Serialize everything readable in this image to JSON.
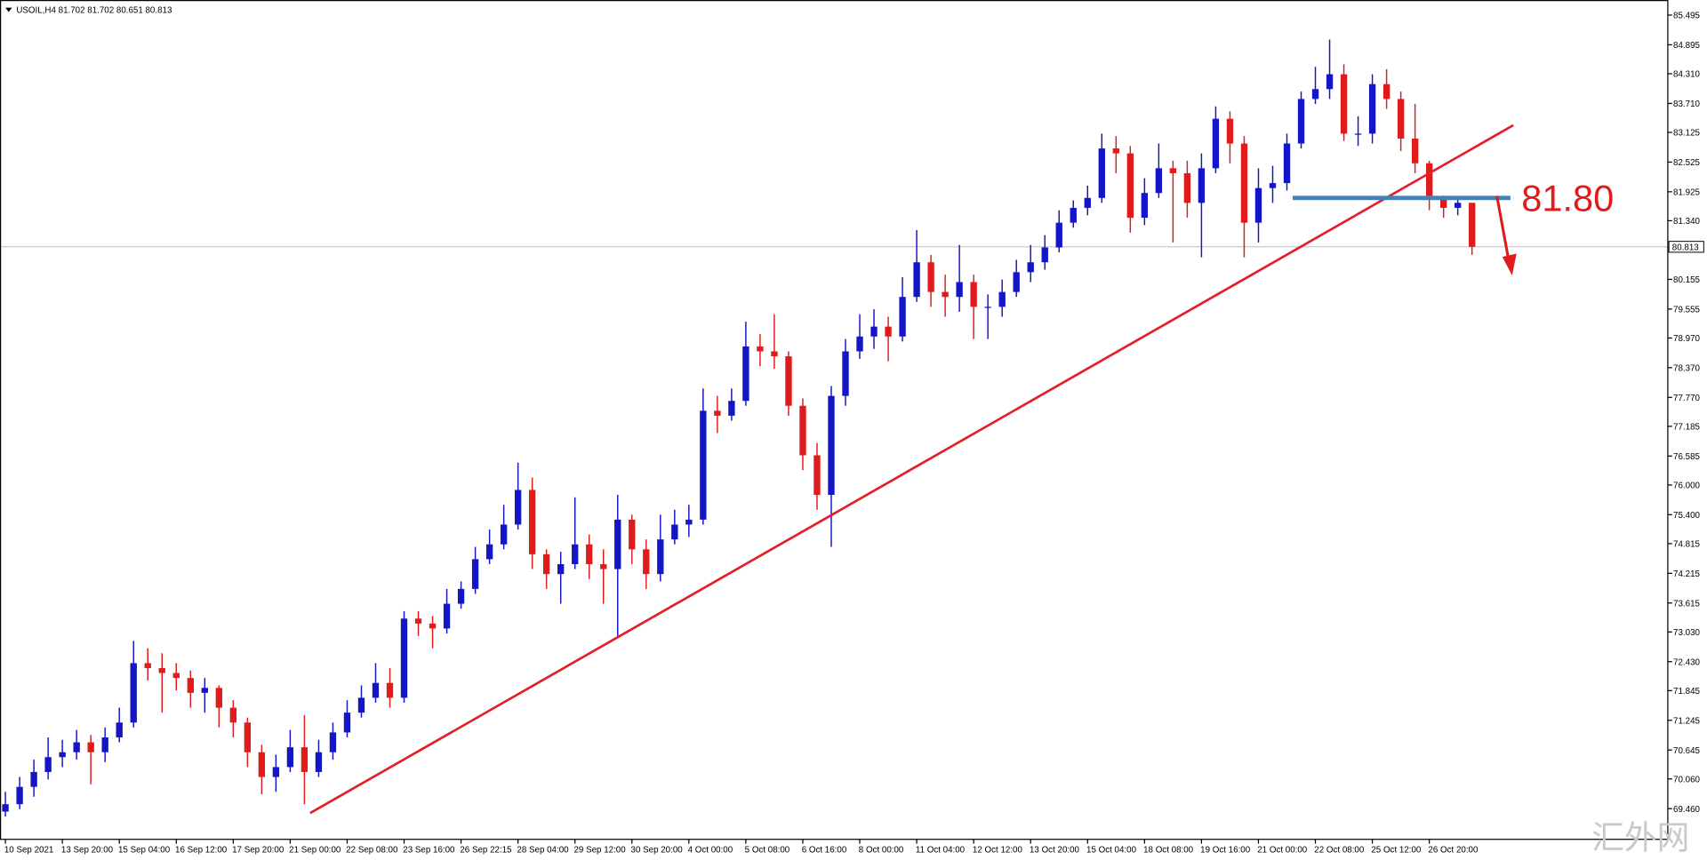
{
  "chart_data": {
    "type": "candlestick",
    "title": "USOIL,H4  81.702 81.702 80.651 80.813",
    "watermark": "汇外网",
    "up_color": "#1515c8",
    "down_color": "#e01b1b",
    "xlim": [
      -0.38,
      116.75
    ],
    "ylim": [
      68.84,
      85.8
    ],
    "xticks": [
      {
        "value": 0,
        "label": "10 Sep 2021"
      },
      {
        "value": 4,
        "label": "13 Sep 20:00"
      },
      {
        "value": 8,
        "label": "15 Sep 04:00"
      },
      {
        "value": 12,
        "label": "16 Sep 12:00"
      },
      {
        "value": 16,
        "label": "17 Sep 20:00"
      },
      {
        "value": 20,
        "label": "21 Sep 00:00"
      },
      {
        "value": 24,
        "label": "22 Sep 08:00"
      },
      {
        "value": 28,
        "label": "23 Sep 16:00"
      },
      {
        "value": 32,
        "label": "26 Sep 22:15"
      },
      {
        "value": 36,
        "label": "28 Sep 04:00"
      },
      {
        "value": 40,
        "label": "29 Sep 12:00"
      },
      {
        "value": 44,
        "label": "30 Sep 20:00"
      },
      {
        "value": 48,
        "label": "4 Oct 00:00"
      },
      {
        "value": 52,
        "label": "5 Oct 08:00"
      },
      {
        "value": 56,
        "label": "6 Oct 16:00"
      },
      {
        "value": 60,
        "label": "8 Oct 00:00"
      },
      {
        "value": 64,
        "label": "11 Oct 04:00"
      },
      {
        "value": 68,
        "label": "12 Oct 12:00"
      },
      {
        "value": 72,
        "label": "13 Oct 20:00"
      },
      {
        "value": 76,
        "label": "15 Oct 04:00"
      },
      {
        "value": 80,
        "label": "18 Oct 08:00"
      },
      {
        "value": 84,
        "label": "19 Oct 16:00"
      },
      {
        "value": 88,
        "label": "21 Oct 00:00"
      },
      {
        "value": 92,
        "label": "22 Oct 08:00"
      },
      {
        "value": 96,
        "label": "25 Oct 12:00"
      },
      {
        "value": 100,
        "label": "26 Oct 20:00"
      }
    ],
    "yticks": [
      85.495,
      84.895,
      {
        "value": 84.31,
        "label": "84.310"
      },
      {
        "value": 83.71,
        "label": "83.710"
      },
      83.125,
      82.525,
      81.925,
      {
        "value": 81.34,
        "label": "81.340"
      },
      80.155,
      79.555,
      {
        "value": 78.97,
        "label": "78.970"
      },
      {
        "value": 78.37,
        "label": "78.370"
      },
      {
        "value": 77.77,
        "label": "77.770"
      },
      77.185,
      76.585,
      {
        "value": 76,
        "label": "76.000"
      },
      {
        "value": 75.4,
        "label": "75.400"
      },
      74.815,
      74.215,
      73.615,
      {
        "value": 73.03,
        "label": "73.030"
      },
      {
        "value": 72.43,
        "label": "72.430"
      },
      71.845,
      71.245,
      70.645,
      {
        "value": 70.06,
        "label": "70.060"
      },
      {
        "value": 69.46,
        "label": "69.460"
      }
    ],
    "open": [
      69.4,
      69.55,
      69.9,
      70.2,
      70.5,
      70.6,
      70.8,
      70.6,
      70.9,
      71.2,
      72.4,
      72.3,
      72.2,
      72.1,
      71.8,
      71.9,
      71.5,
      71.2,
      70.6,
      70.1,
      70.3,
      70.7,
      70.2,
      70.6,
      71,
      71.4,
      71.7,
      72,
      71.7,
      73.3,
      73.2,
      73.1,
      73.6,
      73.9,
      74.5,
      74.8,
      75.2,
      75.9,
      74.6,
      74.2,
      74.4,
      74.8,
      74.4,
      74.3,
      75.3,
      74.7,
      74.2,
      74.9,
      75.2,
      75.3,
      77.5,
      77.4,
      77.7,
      78.8,
      78.7,
      78.6,
      77.6,
      76.6,
      75.8,
      77.8,
      78.7,
      79,
      79.2,
      79,
      79.8,
      80.5,
      79.9,
      79.8,
      80.1,
      79.6,
      79.6,
      79.9,
      80.3,
      80.5,
      80.8,
      81.3,
      81.6,
      81.8,
      82.8,
      82.7,
      81.4,
      81.9,
      82.4,
      82.3,
      81.7,
      82.4,
      83.4,
      82.9,
      81.3,
      82,
      82.1,
      82.9,
      83.8,
      84,
      84.3,
      83.1,
      83.1,
      84.1,
      83.8,
      83,
      82.5,
      81.8,
      81.6,
      81.702
    ],
    "high": [
      69.8,
      70.1,
      70.45,
      70.9,
      70.85,
      71.05,
      70.95,
      71.1,
      71.5,
      72.85,
      72.7,
      72.6,
      72.4,
      72.25,
      72.1,
      71.95,
      71.65,
      71.3,
      70.75,
      70.55,
      71.05,
      71.35,
      70.85,
      71.2,
      71.65,
      71.95,
      72.4,
      72.3,
      73.45,
      73.45,
      73.35,
      73.9,
      74.05,
      74.75,
      75.1,
      75.6,
      76.45,
      76.15,
      74.7,
      74.65,
      75.75,
      75,
      74.7,
      75.8,
      75.4,
      74.9,
      75.4,
      75.5,
      75.6,
      77.95,
      77.8,
      77.95,
      79.3,
      79.05,
      79.45,
      78.7,
      77.75,
      76.85,
      78,
      78.95,
      79.45,
      79.55,
      79.4,
      80.2,
      81.15,
      80.65,
      80.25,
      80.85,
      80.25,
      79.85,
      80.15,
      80.55,
      80.85,
      81.05,
      81.55,
      81.75,
      82.05,
      83.1,
      83.05,
      82.85,
      82.2,
      82.9,
      82.55,
      82.55,
      82.7,
      83.65,
      83.55,
      83.05,
      82.4,
      82.45,
      83.1,
      83.95,
      84.45,
      85,
      84.5,
      83.45,
      84.3,
      84.4,
      83.95,
      83.7,
      82.55,
      81.85,
      81.8,
      81.702
    ],
    "low": [
      69.3,
      69.45,
      69.7,
      70.05,
      70.3,
      70.45,
      69.95,
      70.4,
      70.8,
      71.1,
      72.05,
      71.4,
      71.85,
      71.5,
      71.4,
      71.1,
      70.9,
      70.3,
      69.75,
      69.8,
      70.2,
      69.55,
      70.1,
      70.45,
      70.9,
      71.3,
      71.6,
      71.5,
      71.6,
      72.95,
      72.7,
      73,
      73.5,
      73.8,
      74.4,
      74.7,
      75.1,
      74.3,
      73.9,
      73.6,
      74.3,
      74.1,
      73.6,
      72.95,
      74.4,
      73.9,
      74.05,
      74.8,
      74.95,
      75.2,
      77.05,
      77.3,
      77.6,
      78.4,
      78.35,
      77.4,
      76.3,
      75.5,
      74.75,
      77.6,
      78.55,
      78.75,
      78.5,
      78.9,
      79.7,
      79.6,
      79.4,
      79.5,
      78.95,
      78.95,
      79.4,
      79.8,
      80.1,
      80.35,
      80.7,
      81.2,
      81.45,
      81.7,
      82.3,
      81.1,
      81.25,
      81.8,
      80.9,
      81.4,
      80.6,
      82.3,
      82.5,
      80.6,
      80.9,
      81.7,
      81.95,
      82.8,
      83.7,
      83.8,
      82.95,
      82.85,
      82.9,
      83.6,
      82.75,
      82.3,
      81.55,
      81.4,
      81.45,
      80.651
    ],
    "close": [
      69.55,
      69.9,
      70.2,
      70.5,
      70.6,
      70.8,
      70.6,
      70.9,
      71.2,
      72.4,
      72.3,
      72.2,
      72.1,
      71.8,
      71.9,
      71.5,
      71.2,
      70.6,
      70.1,
      70.3,
      70.7,
      70.2,
      70.6,
      71,
      71.4,
      71.7,
      72,
      71.7,
      73.3,
      73.2,
      73.1,
      73.6,
      73.9,
      74.5,
      74.8,
      75.2,
      75.9,
      74.6,
      74.2,
      74.4,
      74.8,
      74.4,
      74.3,
      75.3,
      74.7,
      74.2,
      74.9,
      75.2,
      75.3,
      77.5,
      77.4,
      77.7,
      78.8,
      78.7,
      78.6,
      77.6,
      76.6,
      75.8,
      77.8,
      78.7,
      79,
      79.2,
      79,
      79.8,
      80.5,
      79.9,
      79.8,
      80.1,
      79.6,
      79.6,
      79.9,
      80.3,
      80.5,
      80.8,
      81.3,
      81.6,
      81.8,
      82.8,
      82.7,
      81.4,
      81.9,
      82.4,
      82.3,
      81.7,
      82.4,
      83.4,
      82.9,
      81.3,
      82,
      82.1,
      82.9,
      83.8,
      84,
      84.3,
      83.1,
      83.1,
      84.1,
      83.8,
      83,
      82.5,
      81.8,
      81.6,
      81.702,
      80.813
    ],
    "trendline": {
      "color": "#e3202a",
      "x": [
        21.4,
        105.9
      ],
      "y": [
        69.37,
        83.27
      ]
    },
    "level": {
      "color": "#4682b4",
      "value": 81.8,
      "label": "81.80",
      "x": [
        90.4,
        105.7
      ]
    }
  }
}
